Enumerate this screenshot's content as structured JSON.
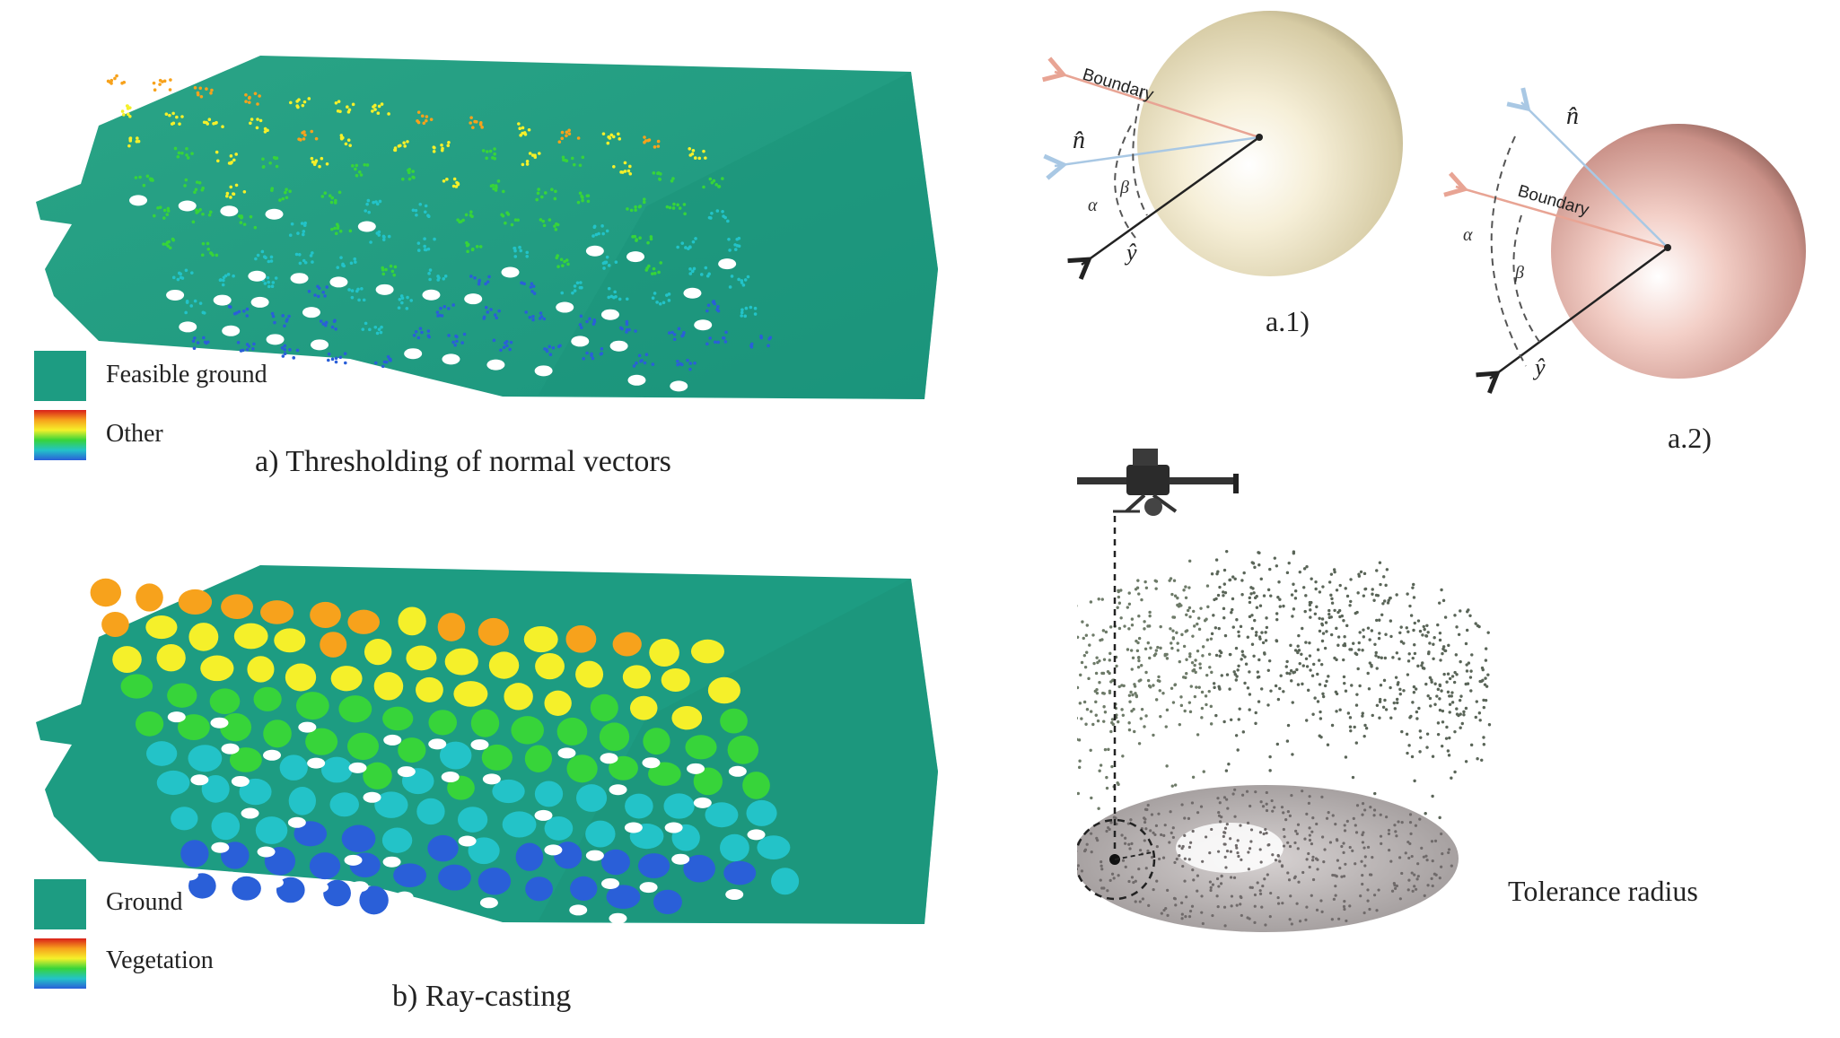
{
  "panel_a": {
    "caption": "a) Thresholding of normal vectors",
    "legend": [
      {
        "label": "Feasible ground",
        "kind": "solid",
        "color": "#1d9c82"
      },
      {
        "label": "Other",
        "kind": "gradient"
      }
    ]
  },
  "panel_b": {
    "caption": "b) Ray-casting",
    "legend": [
      {
        "label": "Ground",
        "kind": "solid",
        "color": "#1d9c82"
      },
      {
        "label": "Vegetation",
        "kind": "gradient"
      }
    ]
  },
  "sphere_a1": {
    "caption": "a.1)",
    "boundary_label": "Boundary",
    "normal_label": "n̂",
    "y_label": "ŷ",
    "alpha_label": "α",
    "beta_label": "β",
    "sphere_color": "#efe6c8"
  },
  "sphere_a2": {
    "caption": "a.2)",
    "boundary_label": "Boundary",
    "normal_label": "n̂",
    "y_label": "ŷ",
    "alpha_label": "α",
    "beta_label": "β",
    "sphere_color": "#e9b7ad"
  },
  "drone_panel": {
    "tolerance_label": "Tolerance radius"
  },
  "colors": {
    "ground": "#1d9c82",
    "boundary_arrow": "#e8a494",
    "normal_arrow": "#a9c8e4",
    "y_arrow": "#222222",
    "gradient": [
      "#d9201a",
      "#f7a21c",
      "#f5f02a",
      "#37d43a",
      "#23c3c8",
      "#2a5fd8"
    ]
  }
}
